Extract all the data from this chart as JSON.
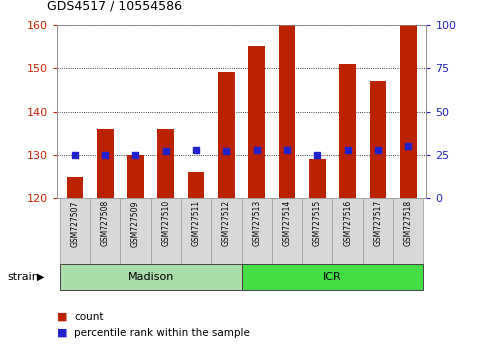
{
  "title": "GDS4517 / 10554586",
  "samples": [
    "GSM727507",
    "GSM727508",
    "GSM727509",
    "GSM727510",
    "GSM727511",
    "GSM727512",
    "GSM727513",
    "GSM727514",
    "GSM727515",
    "GSM727516",
    "GSM727517",
    "GSM727518"
  ],
  "counts": [
    125,
    136,
    130,
    136,
    126,
    149,
    155,
    160,
    129,
    151,
    147,
    160
  ],
  "percentiles": [
    25,
    25,
    25,
    27,
    28,
    27,
    28,
    28,
    25,
    28,
    28,
    30
  ],
  "ymin": 120,
  "ymax": 160,
  "yticks": [
    120,
    130,
    140,
    150,
    160
  ],
  "y2min": 0,
  "y2max": 100,
  "y2ticks": [
    0,
    25,
    50,
    75,
    100
  ],
  "bar_color": "#bb2200",
  "dot_color": "#2222cc",
  "bar_width": 0.55,
  "groups": [
    {
      "label": "Madison",
      "start": 0,
      "end": 5,
      "color": "#aaddaa"
    },
    {
      "label": "ICR",
      "start": 6,
      "end": 11,
      "color": "#44dd44"
    }
  ],
  "group_label": "strain",
  "legend_count_label": "count",
  "legend_percentile_label": "percentile rank within the sample",
  "tick_label_color_left": "#cc2200",
  "tick_label_color_right": "#2222cc"
}
